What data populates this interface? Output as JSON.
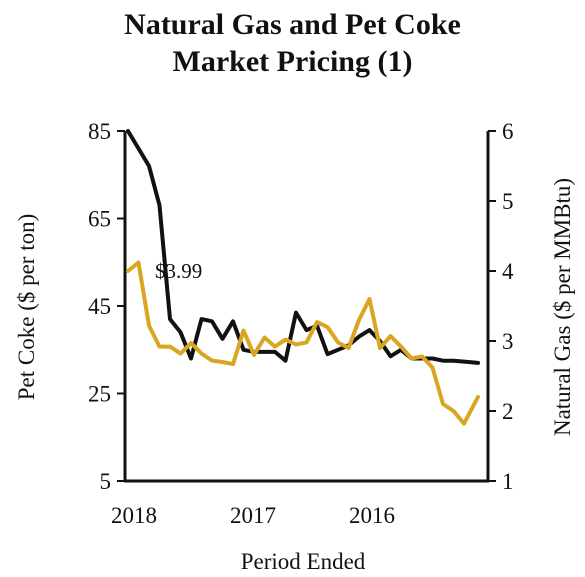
{
  "chart_data": {
    "type": "line",
    "title_lines": [
      "Natural Gas and Pet Coke",
      "Market Pricing (1)"
    ],
    "xlabel": "Period Ended",
    "x_ticks": [
      "2018",
      "2017",
      "2016"
    ],
    "y_left": {
      "label": "Pet Coke ($ per ton)",
      "ticks": [
        "85",
        "65",
        "45",
        "25",
        "5"
      ],
      "range": [
        5,
        85
      ]
    },
    "y_right": {
      "label": "Natural Gas ($ per MMBtu)",
      "ticks": [
        "6",
        "5",
        "4",
        "3",
        "2",
        "1"
      ],
      "range": [
        1,
        6
      ]
    },
    "annotation": "$3.99",
    "grid": false,
    "x_domain": [
      0,
      100
    ],
    "x_tick_values": [
      0,
      34,
      68
    ],
    "series": [
      {
        "axis": "left",
        "color": "#111111",
        "x": [
          0,
          3,
          6,
          9,
          12,
          15,
          18,
          21,
          24,
          27,
          30,
          33,
          36,
          39,
          42,
          45,
          48,
          51,
          54,
          57,
          60,
          63,
          66,
          69,
          72,
          75,
          78,
          81,
          84,
          87,
          90,
          93,
          96,
          100
        ],
        "values": [
          85,
          81,
          77,
          68,
          42,
          39,
          33,
          42,
          41.5,
          37.5,
          41.5,
          35,
          34.5,
          34.5,
          34.5,
          32.5,
          43.5,
          39.5,
          40.5,
          34,
          35,
          36,
          38,
          39.5,
          37,
          33.5,
          35,
          33,
          33,
          33,
          32.5,
          32.5,
          32.3,
          32
        ]
      },
      {
        "axis": "right",
        "color": "#DAA520",
        "x": [
          0,
          3,
          6,
          9,
          12,
          15,
          18,
          21,
          24,
          27,
          30,
          33,
          36,
          39,
          42,
          45,
          48,
          51,
          54,
          57,
          60,
          63,
          66,
          69,
          72,
          75,
          78,
          81,
          84,
          87,
          90,
          93,
          96,
          100
        ],
        "values": [
          4,
          4.12,
          3.22,
          2.92,
          2.92,
          2.82,
          2.97,
          2.82,
          2.72,
          2.7,
          2.67,
          3.15,
          2.8,
          3.05,
          2.92,
          3.02,
          2.95,
          2.98,
          3.27,
          3.2,
          2.98,
          2.9,
          3.3,
          3.6,
          2.9,
          3.07,
          2.92,
          2.75,
          2.78,
          2.62,
          2.1,
          2.0,
          1.82,
          2.2
        ]
      }
    ]
  }
}
